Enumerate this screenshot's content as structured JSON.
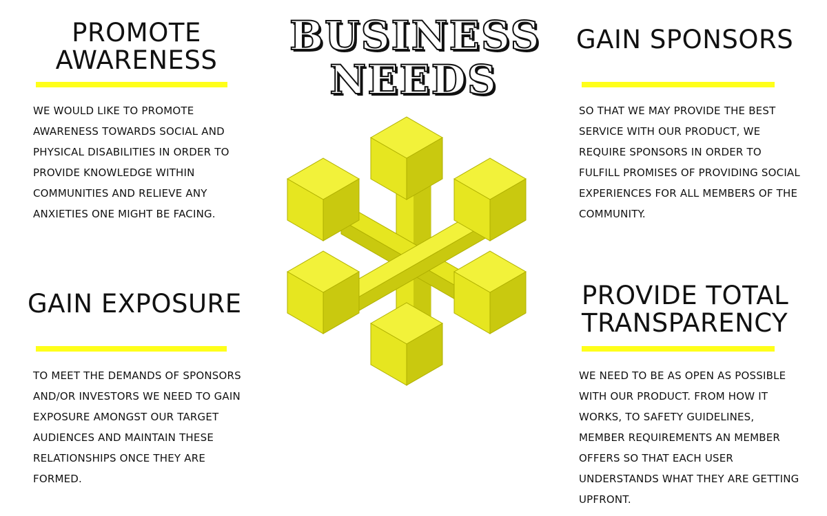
{
  "title": {
    "line1": "BUSINESS",
    "line2": "NEEDS"
  },
  "sections": {
    "promote_awareness": {
      "heading_line1": "PROMOTE",
      "heading_line2": "AWARENESS",
      "lines": [
        "WE WOULD LIKE TO PROMOTE",
        "AWARENESS TOWARDS SOCIAL AND",
        "PHYSICAL DISABILITIES IN ORDER TO",
        "PROVIDE KNOWLEDGE WITHIN",
        "COMMUNITIES AND RELIEVE ANY",
        "ANXIETIES ONE MIGHT BE FACING."
      ]
    },
    "gain_sponsors": {
      "heading_line1": "GAIN SPONSORS",
      "lines": [
        "SO THAT WE MAY PROVIDE THE BEST",
        "SERVICE WITH OUR PRODUCT, WE",
        "REQUIRE SPONSORS IN ORDER TO",
        "FULFILL PROMISES OF PROVIDING SOCIAL",
        "EXPERIENCES FOR ALL MEMBERS OF THE",
        "COMMUNITY."
      ]
    },
    "gain_exposure": {
      "heading_line1": "GAIN EXPOSURE",
      "lines": [
        "TO MEET THE DEMANDS OF SPONSORS",
        "AND/OR INVESTORS WE NEED TO GAIN",
        "EXPOSURE AMONGST OUR TARGET",
        "AUDIENCES AND MAINTAIN THESE",
        "RELATIONSHIPS ONCE THEY ARE",
        "FORMED."
      ]
    },
    "provide_transparency": {
      "heading_line1": "PROVIDE TOTAL",
      "heading_line2": "TRANSPARENCY",
      "lines": [
        "WE NEED TO BE AS OPEN AS POSSIBLE",
        "WITH OUR PRODUCT. FROM HOW IT",
        "WORKS, TO SAFETY GUIDELINES,",
        "MEMBER REQUIREMENTS AN MEMBER",
        "OFFERS SO THAT EACH USER",
        "UNDERSTANDS WHAT THEY ARE GETTING",
        "UPFRONT."
      ]
    }
  },
  "colors": {
    "accent_yellow": "#ffff1a",
    "cube_top": "#f2f23a",
    "cube_left": "#e6e620",
    "cube_right": "#c9c90f",
    "text": "#111111"
  },
  "icons": {
    "center_graphic": "snowflake-cube-network-icon"
  }
}
